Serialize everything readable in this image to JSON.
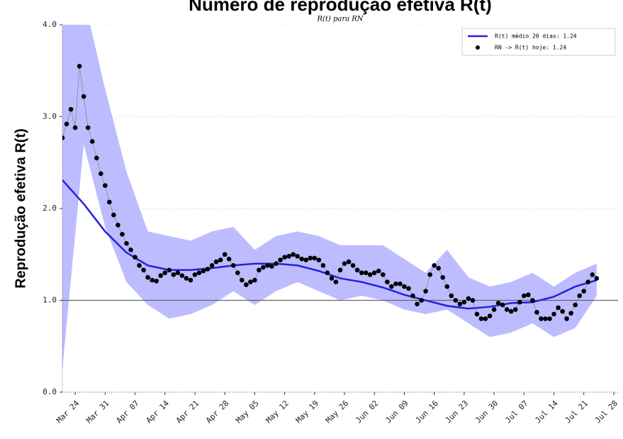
{
  "chart_data": {
    "type": "line",
    "title": "Número de reprodução efetiva R(t)",
    "subtitle": "R(t) para RN",
    "ylabel": "Reprodução efetiva R(t)",
    "xlim": [
      "Mar 21",
      "Jul 29"
    ],
    "xticks": [
      "Mar 24",
      "Mar 31",
      "Apr 07",
      "Apr 14",
      "Apr 21",
      "Apr 28",
      "May 05",
      "May 12",
      "May 19",
      "May 26",
      "Jun 02",
      "Jun 09",
      "Jun 16",
      "Jun 23",
      "Jun 30",
      "Jul 07",
      "Jul 14",
      "Jul 21",
      "Jul 28"
    ],
    "ylim": [
      0,
      4
    ],
    "yticks": [
      {
        "value": 0,
        "label": "0.0"
      },
      {
        "value": 1,
        "label": "1.0"
      },
      {
        "value": 2,
        "label": "2.0"
      },
      {
        "value": 3,
        "label": "3.0"
      },
      {
        "value": 4,
        "label": "4.0"
      }
    ],
    "grid": true,
    "hline": 1.0,
    "legend": "upper right",
    "band": {
      "color": "#b0b0ff",
      "x": [
        "Mar 21",
        "Mar 26",
        "Mar 31",
        "Apr 05",
        "Apr 10",
        "Apr 15",
        "Apr 20",
        "Apr 25",
        "Apr 30",
        "May 05",
        "May 10",
        "May 15",
        "May 20",
        "May 25",
        "May 30",
        "Jun 04",
        "Jun 09",
        "Jun 14",
        "Jun 19",
        "Jun 24",
        "Jun 29",
        "Jul 04",
        "Jul 09",
        "Jul 14",
        "Jul 19",
        "Jul 24"
      ],
      "lower": [
        0.25,
        2.7,
        1.8,
        1.2,
        0.95,
        0.8,
        0.85,
        0.95,
        1.1,
        0.95,
        1.1,
        1.2,
        1.1,
        1.0,
        1.05,
        1.0,
        0.9,
        0.85,
        0.9,
        0.75,
        0.6,
        0.65,
        0.75,
        0.6,
        0.7,
        1.05
      ],
      "upper": [
        4.3,
        4.3,
        3.3,
        2.4,
        1.75,
        1.7,
        1.65,
        1.75,
        1.8,
        1.55,
        1.7,
        1.75,
        1.7,
        1.6,
        1.6,
        1.6,
        1.45,
        1.3,
        1.55,
        1.25,
        1.15,
        1.2,
        1.3,
        1.15,
        1.3,
        1.4
      ]
    },
    "series": [
      {
        "name": "R(t) médio 20 dias: 1.24",
        "type": "line",
        "color": "#2222dd",
        "x": [
          "Mar 21",
          "Mar 26",
          "Mar 31",
          "Apr 05",
          "Apr 10",
          "Apr 15",
          "Apr 20",
          "Apr 25",
          "Apr 30",
          "May 05",
          "May 10",
          "May 15",
          "May 20",
          "May 25",
          "May 30",
          "Jun 04",
          "Jun 09",
          "Jun 14",
          "Jun 19",
          "Jun 24",
          "Jun 29",
          "Jul 04",
          "Jul 09",
          "Jul 14",
          "Jul 19",
          "Jul 24"
        ],
        "values": [
          2.31,
          2.05,
          1.75,
          1.52,
          1.38,
          1.33,
          1.33,
          1.35,
          1.38,
          1.4,
          1.4,
          1.38,
          1.32,
          1.24,
          1.2,
          1.14,
          1.06,
          1.0,
          0.94,
          0.91,
          0.93,
          0.97,
          0.98,
          1.04,
          1.15,
          1.22
        ]
      },
      {
        "name": "RN -> R(t) hoje: 1.24",
        "type": "scatter",
        "color": "#000000",
        "x": [
          "Mar 21",
          "Mar 22",
          "Mar 23",
          "Mar 24",
          "Mar 25",
          "Mar 26",
          "Mar 27",
          "Mar 28",
          "Mar 29",
          "Mar 30",
          "Mar 31",
          "Apr 01",
          "Apr 02",
          "Apr 03",
          "Apr 04",
          "Apr 05",
          "Apr 06",
          "Apr 07",
          "Apr 08",
          "Apr 09",
          "Apr 10",
          "Apr 11",
          "Apr 12",
          "Apr 13",
          "Apr 14",
          "Apr 15",
          "Apr 16",
          "Apr 17",
          "Apr 18",
          "Apr 19",
          "Apr 20",
          "Apr 21",
          "Apr 22",
          "Apr 23",
          "Apr 24",
          "Apr 25",
          "Apr 26",
          "Apr 27",
          "Apr 28",
          "Apr 29",
          "Apr 30",
          "May 01",
          "May 02",
          "May 03",
          "May 04",
          "May 05",
          "May 06",
          "May 07",
          "May 08",
          "May 09",
          "May 10",
          "May 11",
          "May 12",
          "May 13",
          "May 14",
          "May 15",
          "May 16",
          "May 17",
          "May 18",
          "May 19",
          "May 20",
          "May 21",
          "May 22",
          "May 23",
          "May 24",
          "May 25",
          "May 26",
          "May 27",
          "May 28",
          "May 29",
          "May 30",
          "May 31",
          "Jun 01",
          "Jun 02",
          "Jun 03",
          "Jun 04",
          "Jun 05",
          "Jun 06",
          "Jun 07",
          "Jun 08",
          "Jun 09",
          "Jun 10",
          "Jun 11",
          "Jun 12",
          "Jun 13",
          "Jun 14",
          "Jun 15",
          "Jun 16",
          "Jun 17",
          "Jun 18",
          "Jun 19",
          "Jun 20",
          "Jun 21",
          "Jun 22",
          "Jun 23",
          "Jun 24",
          "Jun 25",
          "Jun 26",
          "Jun 27",
          "Jun 28",
          "Jun 29",
          "Jun 30",
          "Jul 01",
          "Jul 02",
          "Jul 03",
          "Jul 04",
          "Jul 05",
          "Jul 06",
          "Jul 07",
          "Jul 08",
          "Jul 09",
          "Jul 10",
          "Jul 11",
          "Jul 12",
          "Jul 13",
          "Jul 14",
          "Jul 15",
          "Jul 16",
          "Jul 17",
          "Jul 18",
          "Jul 19",
          "Jul 20",
          "Jul 21",
          "Jul 22",
          "Jul 23",
          "Jul 24"
        ],
        "values": [
          2.77,
          2.92,
          3.08,
          2.88,
          3.55,
          3.22,
          2.88,
          2.73,
          2.55,
          2.38,
          2.25,
          2.07,
          1.93,
          1.82,
          1.72,
          1.62,
          1.55,
          1.47,
          1.38,
          1.33,
          1.25,
          1.22,
          1.21,
          1.27,
          1.3,
          1.33,
          1.28,
          1.3,
          1.27,
          1.24,
          1.22,
          1.28,
          1.3,
          1.32,
          1.34,
          1.38,
          1.42,
          1.44,
          1.5,
          1.45,
          1.38,
          1.3,
          1.22,
          1.17,
          1.2,
          1.22,
          1.33,
          1.36,
          1.38,
          1.37,
          1.4,
          1.44,
          1.47,
          1.48,
          1.5,
          1.48,
          1.45,
          1.44,
          1.46,
          1.46,
          1.44,
          1.38,
          1.3,
          1.24,
          1.2,
          1.33,
          1.4,
          1.42,
          1.38,
          1.33,
          1.3,
          1.3,
          1.28,
          1.3,
          1.32,
          1.28,
          1.2,
          1.15,
          1.18,
          1.18,
          1.15,
          1.13,
          1.05,
          0.96,
          1.0,
          1.1,
          1.28,
          1.38,
          1.35,
          1.25,
          1.15,
          1.05,
          1.0,
          0.96,
          0.98,
          1.02,
          1.0,
          0.85,
          0.8,
          0.8,
          0.83,
          0.9,
          0.97,
          0.95,
          0.9,
          0.88,
          0.9,
          0.98,
          1.05,
          1.06,
          1.0,
          0.87,
          0.8,
          0.8,
          0.8,
          0.85,
          0.92,
          0.88,
          0.8,
          0.86,
          0.95,
          1.05,
          1.1,
          1.2,
          1.28,
          1.24
        ]
      }
    ]
  }
}
